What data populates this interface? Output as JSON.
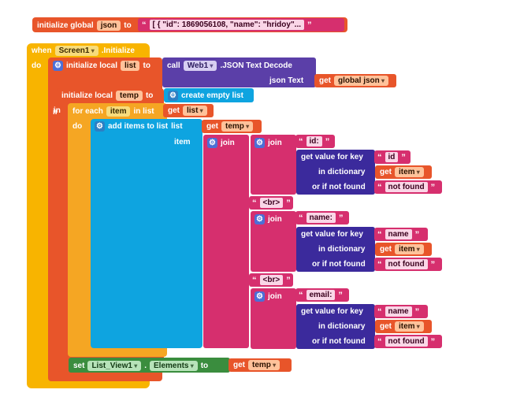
{
  "colors": {
    "variables": "#e8552a",
    "control": "#f5a623",
    "event": "#f8b400",
    "lists": "#0ea4e0",
    "text": "#d62f6e",
    "dictionary": "#3b2a9c",
    "component": "#5b3fa8",
    "set": "#3a8d3e"
  },
  "global_block": {
    "label": "initialize global",
    "var_name": "json",
    "to": "to",
    "value": "[ {     \"id\": 1869056108,     \"name\": \"hridoy\"..."
  },
  "event": {
    "when": "when",
    "component": "Screen1",
    "event_name": ".Initialize",
    "do": "do"
  },
  "local_list": {
    "label": "initialize local",
    "var_name": "list",
    "to": "to",
    "call": "call",
    "component": "Web1",
    "method": ".JSON Text Decode",
    "param_label": "json Text",
    "get": "get",
    "get_var": "global json",
    "in": "in"
  },
  "local_temp": {
    "label": "initialize local",
    "var_name": "temp",
    "to": "to",
    "create": "create empty list",
    "in": "in"
  },
  "foreach": {
    "label": "for each",
    "var_name": "item",
    "in_list": "in list",
    "get": "get",
    "get_var": "list",
    "do": "do"
  },
  "add_items": {
    "label": "add items to list",
    "list_label": "list",
    "get": "get",
    "get_var": "temp",
    "item_label": "item"
  },
  "join": {
    "label": "join",
    "id_text": "id:",
    "name_text": "name:",
    "email_text": "email:",
    "br1": "<br>",
    "br2": "<br>",
    "get_value": "get value for key",
    "in_dict": "in dictionary",
    "if_not_found": "or if not found",
    "key_id": "id",
    "key_name1": "name",
    "key_name2": "name",
    "get": "get",
    "get_var": "item",
    "not_found": "not found"
  },
  "set_block": {
    "set": "set",
    "component": "List_View1",
    "dot": ".",
    "property": "Elements",
    "to": "to",
    "get": "get",
    "get_var": "temp"
  }
}
